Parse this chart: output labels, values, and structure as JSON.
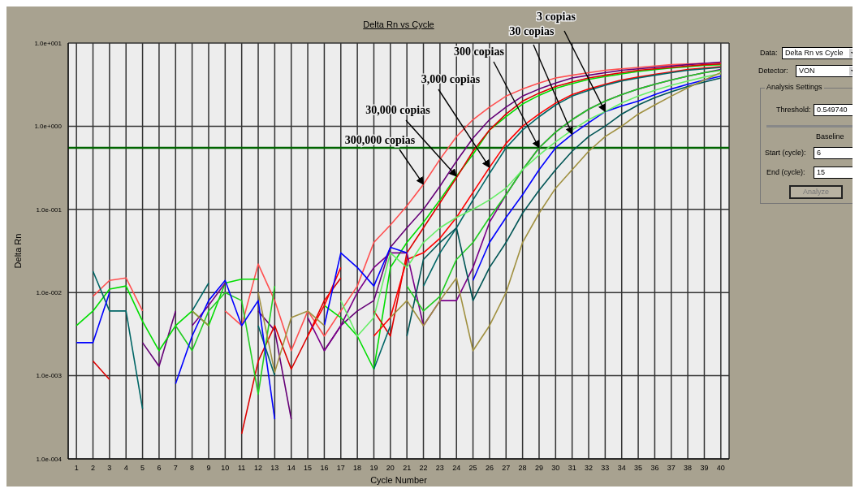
{
  "chart_data": [
    {
      "type": "line",
      "title": "Delta Rn vs Cycle",
      "xlabel": "Cycle Number",
      "ylabel": "Delta Rn",
      "x": [
        1,
        2,
        3,
        4,
        5,
        6,
        7,
        8,
        9,
        10,
        11,
        12,
        13,
        14,
        15,
        16,
        17,
        18,
        19,
        20,
        21,
        22,
        23,
        24,
        25,
        26,
        27,
        28,
        29,
        30,
        31,
        32,
        33,
        34,
        35,
        36,
        37,
        38,
        39,
        40
      ],
      "xlim": [
        0.5,
        40.5
      ],
      "xticks": [
        1,
        2,
        3,
        4,
        5,
        6,
        7,
        8,
        9,
        10,
        11,
        12,
        13,
        14,
        15,
        16,
        17,
        18,
        19,
        20,
        21,
        22,
        23,
        24,
        25,
        26,
        27,
        28,
        29,
        30,
        31,
        32,
        33,
        34,
        35,
        36,
        37,
        38,
        39,
        40
      ],
      "log": "y",
      "ylim": [
        0.0001,
        10
      ],
      "yticks": [
        {
          "value": 0.0001,
          "label": "1.0e-004"
        },
        {
          "value": 0.001,
          "label": "1.0e-003"
        },
        {
          "value": 0.01,
          "label": "1.0e-002"
        },
        {
          "value": 0.1,
          "label": "1.0e-001"
        },
        {
          "value": 1,
          "label": "1.0e+000"
        },
        {
          "value": 10,
          "label": "1.0e+001"
        }
      ],
      "grid": true,
      "legend": false,
      "marker": "none",
      "line_style": "solid",
      "ref_lines": [
        {
          "axis": "y",
          "value": 0.54974,
          "color": "#006400"
        }
      ],
      "annotations": [
        {
          "text": "300,000 copias",
          "x": 22,
          "y": 0.2
        },
        {
          "text": "30,000 copias",
          "x": 24,
          "y": 0.25
        },
        {
          "text": "3,000 copias",
          "x": 26,
          "y": 0.32
        },
        {
          "text": "300 copias",
          "x": 29,
          "y": 0.55
        },
        {
          "text": "30 copias",
          "x": 31,
          "y": 0.8
        },
        {
          "text": "3 copias",
          "x": 33,
          "y": 1.5
        }
      ],
      "series": [
        {
          "color": "#ff5050",
          "values": [
            null,
            0.009,
            0.014,
            0.015,
            0.006,
            null,
            null,
            null,
            null,
            0.006,
            0.004,
            0.022,
            0.008,
            0.002,
            0.006,
            0.003,
            0.006,
            0.012,
            0.04,
            0.065,
            0.11,
            0.2,
            0.4,
            0.75,
            1.2,
            1.7,
            2.3,
            2.8,
            3.3,
            3.8,
            4.1,
            4.4,
            4.7,
            4.9,
            5.1,
            5.3,
            5.5,
            5.6,
            5.7,
            5.8
          ]
        },
        {
          "color": "#660077",
          "values": [
            null,
            null,
            null,
            null,
            0.0025,
            0.0013,
            0.006,
            null,
            null,
            null,
            null,
            0.006,
            0.0035,
            0.0003,
            null,
            0.002,
            0.004,
            0.006,
            0.008,
            0.035,
            0.06,
            0.1,
            0.19,
            0.38,
            0.72,
            1.2,
            1.7,
            2.3,
            2.8,
            3.3,
            3.8,
            4.1,
            4.4,
            4.7,
            4.9,
            5.1,
            5.3,
            5.5,
            5.7,
            5.9
          ]
        },
        {
          "color": "#00dd00",
          "values": [
            0.004,
            0.006,
            0.011,
            0.012,
            0.0045,
            0.002,
            0.004,
            0.006,
            0.004,
            0.013,
            0.0145,
            0.0145,
            null,
            null,
            null,
            0.007,
            0.005,
            0.003,
            0.0012,
            0.02,
            0.04,
            0.07,
            0.13,
            0.25,
            0.46,
            0.9,
            1.3,
            1.85,
            2.35,
            2.85,
            3.25,
            3.65,
            3.95,
            4.25,
            4.55,
            4.8,
            5.0,
            5.2,
            5.4,
            5.5
          ]
        },
        {
          "color": "#dd0000",
          "values": [
            null,
            0.0015,
            0.0009,
            null,
            null,
            null,
            null,
            null,
            null,
            null,
            0.0002,
            0.0015,
            0.004,
            0.0012,
            0.003,
            0.008,
            0.015,
            null,
            0.006,
            0.003,
            0.03,
            0.06,
            0.12,
            0.24,
            0.5,
            0.9,
            1.4,
            2.0,
            2.5,
            3.0,
            3.4,
            3.8,
            4.1,
            4.4,
            4.7,
            4.9,
            5.1,
            5.3,
            5.5,
            5.6
          ]
        },
        {
          "color": "#ff0000",
          "values": [
            null,
            null,
            null,
            null,
            null,
            null,
            null,
            null,
            null,
            null,
            null,
            null,
            null,
            null,
            0.003,
            0.007,
            0.02,
            null,
            0.003,
            0.005,
            0.025,
            0.03,
            0.045,
            0.08,
            0.16,
            0.32,
            0.62,
            1.0,
            1.4,
            1.9,
            2.4,
            2.8,
            3.2,
            3.6,
            3.9,
            4.2,
            4.5,
            4.8,
            5.0,
            5.2
          ]
        },
        {
          "color": "#006666",
          "values": [
            null,
            0.018,
            0.006,
            0.006,
            0.0004,
            null,
            null,
            0.006,
            0.013,
            null,
            null,
            0.004,
            0.001,
            null,
            null,
            null,
            null,
            null,
            0.0012,
            0.004,
            null,
            0.012,
            0.03,
            0.06,
            0.13,
            0.27,
            0.55,
            0.9,
            1.3,
            1.8,
            2.3,
            2.7,
            3.1,
            3.5,
            3.8,
            4.1,
            4.4,
            4.7,
            4.9,
            5.1
          ]
        },
        {
          "color": "#7a0088",
          "values": [
            null,
            null,
            null,
            null,
            null,
            null,
            null,
            0.004,
            0.007,
            0.013,
            null,
            null,
            null,
            null,
            0.005,
            0.002,
            0.004,
            0.01,
            0.02,
            0.03,
            0.03,
            0.004,
            0.008,
            0.008,
            0.02,
            0.07,
            0.15,
            0.3,
            0.55,
            0.85,
            1.2,
            1.6,
            2.0,
            2.4,
            2.8,
            3.2,
            3.6,
            4.0,
            4.4,
            4.8
          ]
        },
        {
          "color": "#22cc22",
          "values": [
            null,
            null,
            null,
            null,
            null,
            null,
            0.004,
            0.002,
            0.006,
            0.01,
            0.008,
            0.0006,
            0.012,
            null,
            null,
            null,
            null,
            null,
            null,
            null,
            0.012,
            0.006,
            0.009,
            0.025,
            0.04,
            0.08,
            0.15,
            0.3,
            0.55,
            0.85,
            1.2,
            1.6,
            2.0,
            2.4,
            2.8,
            3.2,
            3.6,
            4.0,
            4.4,
            4.7
          ]
        },
        {
          "color": "#0000ff",
          "values": [
            0.0025,
            0.0025,
            0.01,
            null,
            null,
            null,
            0.0008,
            0.003,
            0.008,
            0.014,
            0.004,
            0.008,
            0.0003,
            null,
            null,
            0.004,
            0.03,
            0.02,
            0.012,
            0.035,
            0.03,
            null,
            null,
            null,
            0.014,
            0.04,
            0.08,
            0.15,
            0.3,
            0.55,
            0.8,
            1.1,
            1.5,
            1.75,
            2.0,
            2.4,
            2.8,
            3.2,
            3.6,
            4.0
          ]
        },
        {
          "color": "#66ee66",
          "values": [
            null,
            null,
            null,
            null,
            null,
            null,
            null,
            null,
            null,
            null,
            null,
            null,
            null,
            null,
            null,
            null,
            0.008,
            0.003,
            0.005,
            0.03,
            0.02,
            0.04,
            0.06,
            0.08,
            0.1,
            0.13,
            0.18,
            0.3,
            0.45,
            0.65,
            0.9,
            1.2,
            1.5,
            1.9,
            2.3,
            2.7,
            3.1,
            3.5,
            3.9,
            4.3
          ]
        },
        {
          "color": "#005555",
          "values": [
            null,
            null,
            null,
            null,
            null,
            null,
            null,
            null,
            null,
            null,
            null,
            null,
            null,
            null,
            null,
            null,
            null,
            null,
            null,
            null,
            0.003,
            0.025,
            0.04,
            0.06,
            0.008,
            0.02,
            0.04,
            0.09,
            0.17,
            0.3,
            0.5,
            0.75,
            1.0,
            1.4,
            1.8,
            2.2,
            2.6,
            3.0,
            3.4,
            3.8
          ]
        },
        {
          "color": "#a09040",
          "values": [
            null,
            null,
            null,
            null,
            null,
            null,
            null,
            0.006,
            0.004,
            null,
            null,
            0.01,
            0.0011,
            0.005,
            0.006,
            0.004,
            null,
            null,
            null,
            0.005,
            0.008,
            0.004,
            0.008,
            0.015,
            0.002,
            0.004,
            0.01,
            0.04,
            0.09,
            0.18,
            0.3,
            0.5,
            0.75,
            1.0,
            1.4,
            1.8,
            2.3,
            2.9,
            3.6,
            4.4
          ]
        }
      ]
    },
    {
      "type": "other",
      "annotations": [
        "Data:",
        "Delta Rn vs Cycle",
        "Detector:",
        "VON",
        "Analysis Settings",
        "Threshold:",
        "0.549740",
        "Baseline",
        "Start (cycle):",
        "6",
        "End (cycle):",
        "15",
        "Analyze"
      ]
    }
  ]
}
